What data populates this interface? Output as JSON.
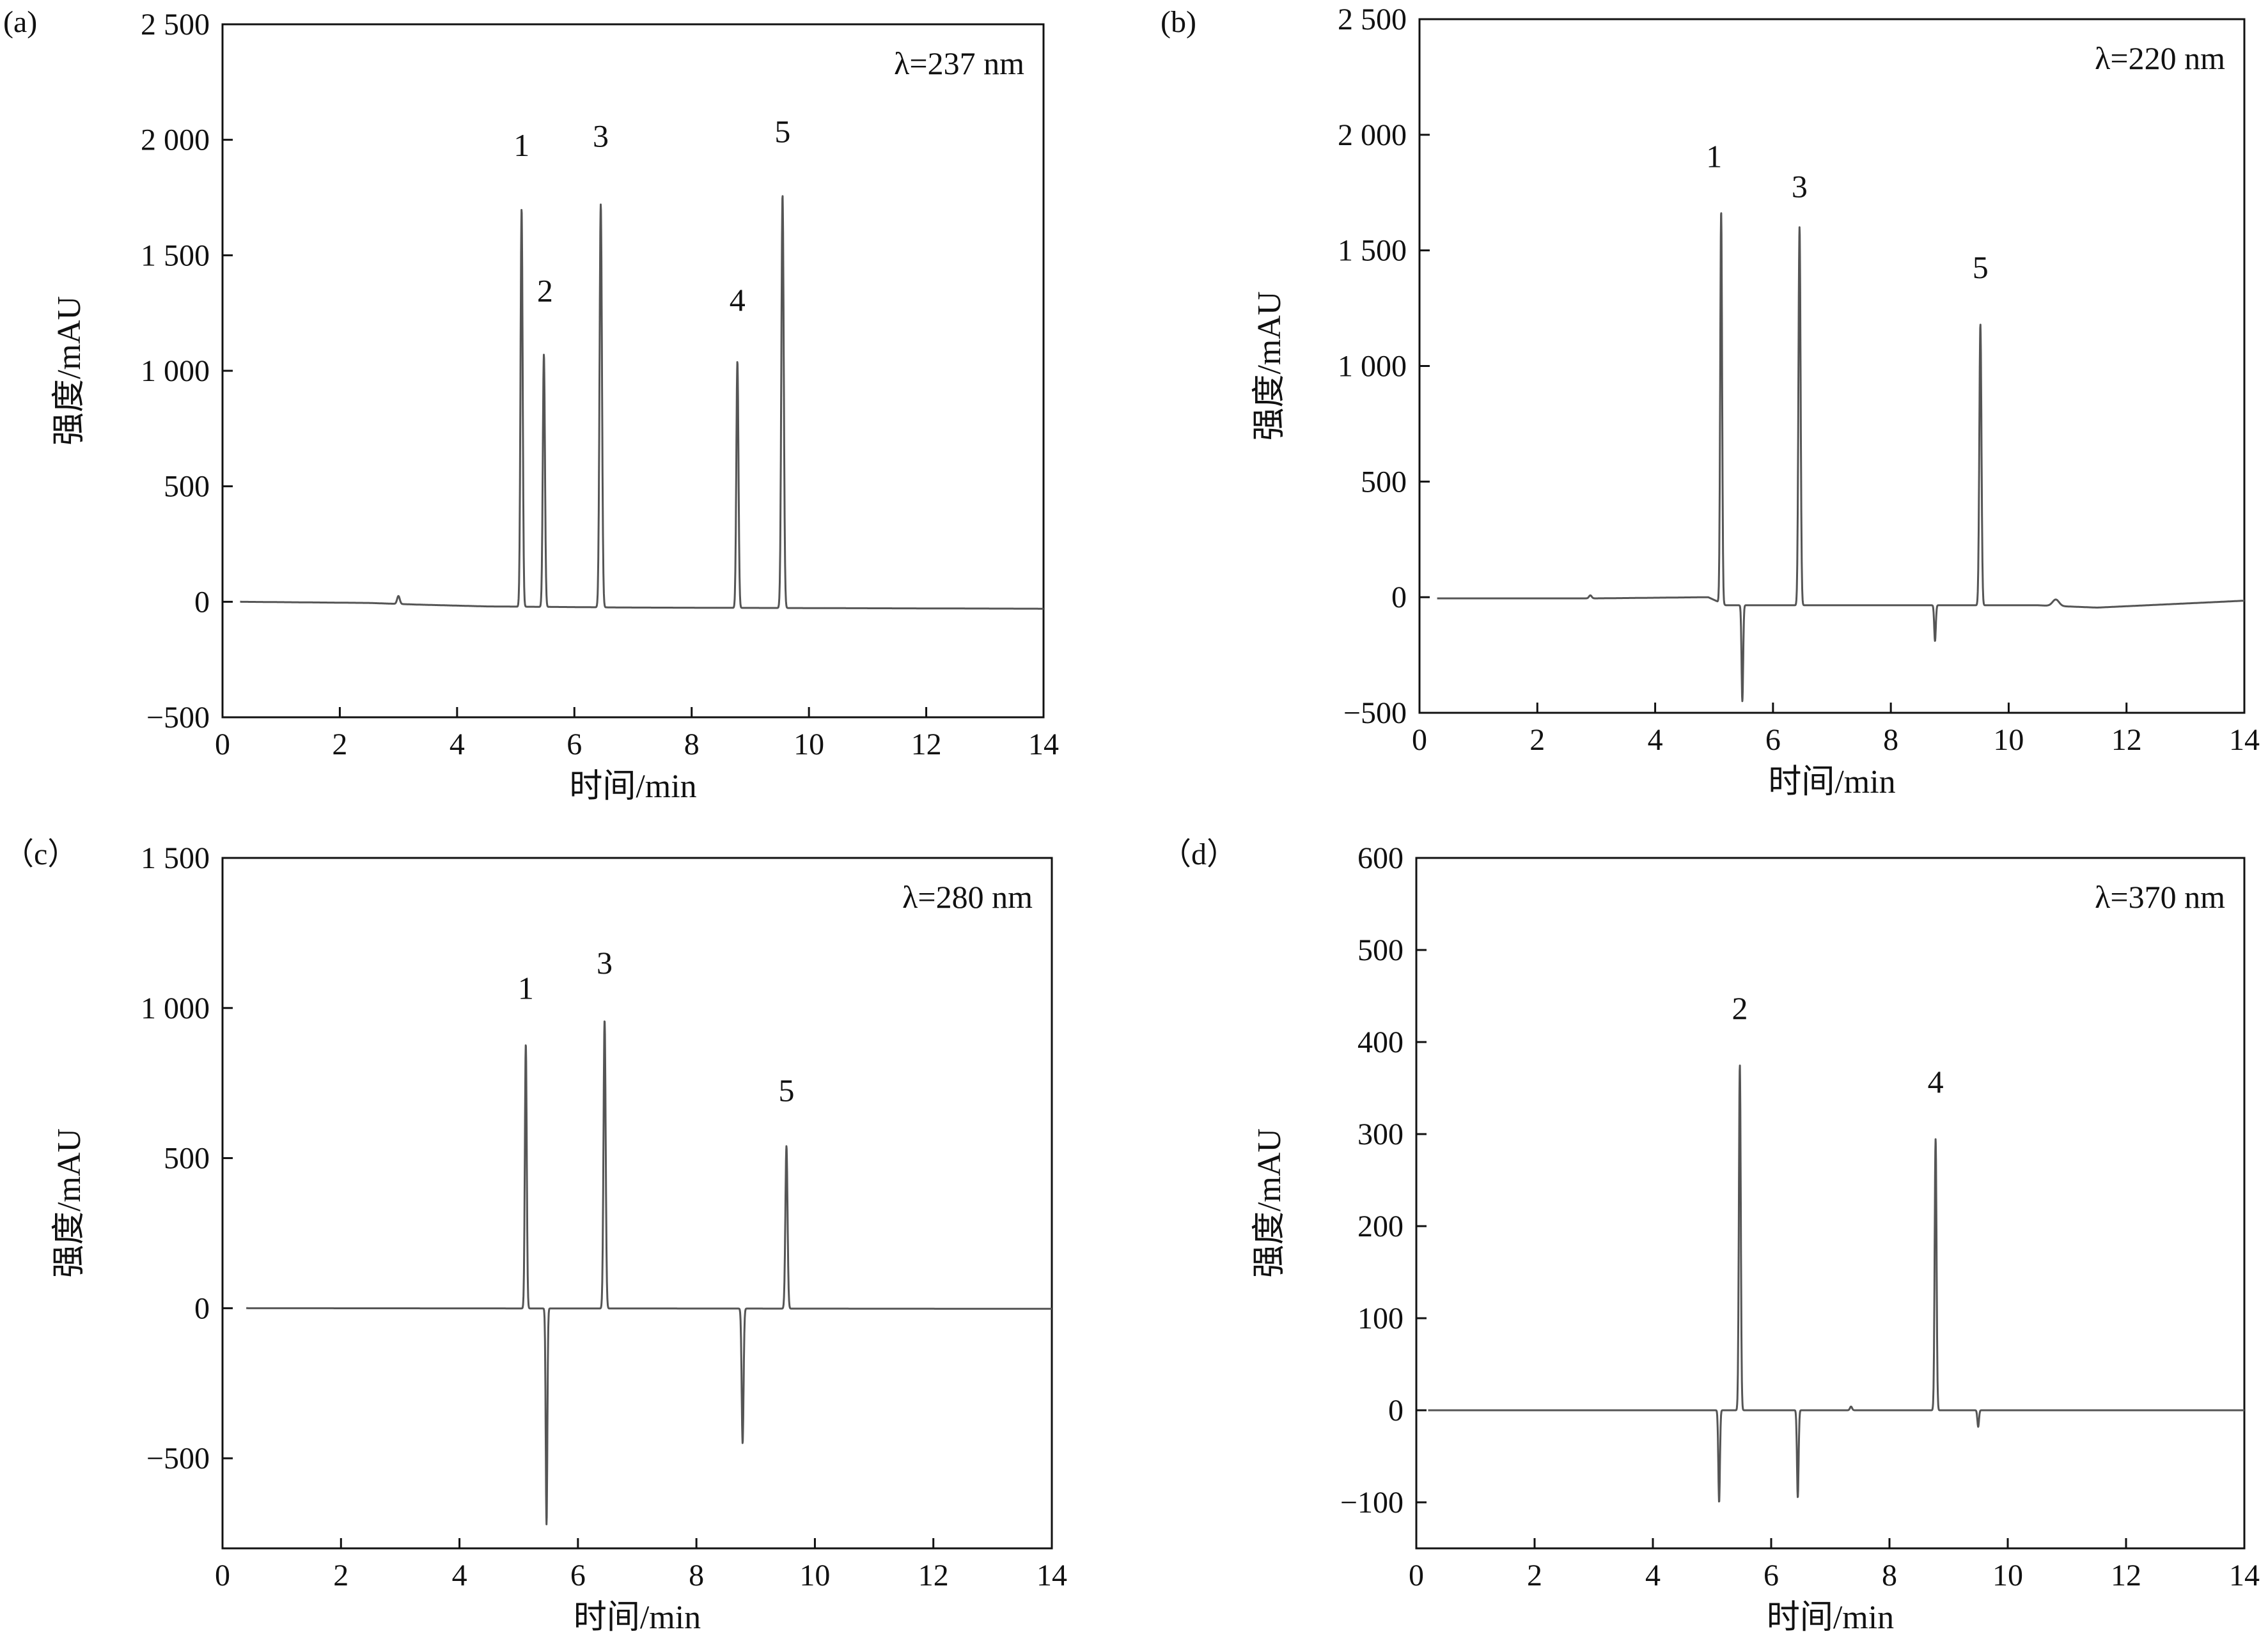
{
  "chart_data": [
    {
      "type": "line",
      "panel": "(a)",
      "annotation": "λ=237 nm",
      "xlabel": "时间/min",
      "ylabel": "强度/mAU",
      "xlim": [
        0,
        14
      ],
      "ylim": [
        -500,
        2500
      ],
      "xticks": [
        0,
        2,
        4,
        6,
        8,
        10,
        12,
        14
      ],
      "xtick_labels": [
        "0",
        "2",
        "4",
        "6",
        "8",
        "10",
        "12",
        "14"
      ],
      "yticks": [
        -500,
        0,
        500,
        1000,
        1500,
        2000,
        2500
      ],
      "ytick_labels": [
        "−500",
        "0",
        "500",
        "1 000",
        "1 500",
        "2 000",
        "2 500"
      ],
      "baseline": [
        [
          0.3,
          0
        ],
        [
          2.5,
          -5
        ],
        [
          3.3,
          -12
        ],
        [
          4.5,
          -20
        ],
        [
          7,
          -25
        ],
        [
          11,
          -28
        ],
        [
          14,
          -30
        ]
      ],
      "peaks": [
        {
          "x": 3.0,
          "y": 25,
          "width": 0.05
        },
        {
          "x": 5.1,
          "y": 1700,
          "width": 0.04
        },
        {
          "x": 5.48,
          "y": 1070,
          "width": 0.04
        },
        {
          "x": 6.45,
          "y": 1720,
          "width": 0.045
        },
        {
          "x": 8.78,
          "y": 1040,
          "width": 0.04
        },
        {
          "x": 9.55,
          "y": 1760,
          "width": 0.045
        }
      ],
      "peak_labels": [
        {
          "text": "1",
          "x": 5.1,
          "y": 1930
        },
        {
          "text": "2",
          "x": 5.5,
          "y": 1300
        },
        {
          "text": "3",
          "x": 6.45,
          "y": 1970
        },
        {
          "text": "4",
          "x": 8.78,
          "y": 1260
        },
        {
          "text": "5",
          "x": 9.55,
          "y": 1990
        }
      ]
    },
    {
      "type": "line",
      "panel": "(b)",
      "annotation": "λ=220 nm",
      "xlabel": "时间/min",
      "ylabel": "强度/mAU",
      "xlim": [
        0,
        14
      ],
      "ylim": [
        -500,
        2500
      ],
      "xticks": [
        0,
        2,
        4,
        6,
        8,
        10,
        12,
        14
      ],
      "xtick_labels": [
        "0",
        "2",
        "4",
        "6",
        "8",
        "10",
        "12",
        "14"
      ],
      "yticks": [
        -500,
        0,
        500,
        1000,
        1500,
        2000,
        2500
      ],
      "ytick_labels": [
        "−500",
        "0",
        "500",
        "1 000",
        "1 500",
        "2 000",
        "2 500"
      ],
      "baseline": [
        [
          0.3,
          -5
        ],
        [
          3.0,
          -5
        ],
        [
          4.9,
          0
        ],
        [
          5.2,
          -35
        ],
        [
          10.5,
          -35
        ],
        [
          11.5,
          -45
        ],
        [
          13.6,
          -20
        ],
        [
          14,
          -15
        ]
      ],
      "peaks": [
        {
          "x": 2.9,
          "y": 8,
          "width": 0.05
        },
        {
          "x": 5.12,
          "y": 1670,
          "width": 0.035
        },
        {
          "x": 5.48,
          "y": -450,
          "width": 0.03
        },
        {
          "x": 6.45,
          "y": 1600,
          "width": 0.04
        },
        {
          "x": 8.75,
          "y": -190,
          "width": 0.03
        },
        {
          "x": 9.52,
          "y": 1180,
          "width": 0.04
        },
        {
          "x": 10.8,
          "y": -10,
          "width": 0.12
        }
      ],
      "peak_labels": [
        {
          "text": "1",
          "x": 5.0,
          "y": 1860
        },
        {
          "text": "3",
          "x": 6.45,
          "y": 1730
        },
        {
          "text": "5",
          "x": 9.52,
          "y": 1380
        }
      ]
    },
    {
      "type": "line",
      "panel": "（c）",
      "annotation": "λ=280 nm",
      "xlabel": "时间/min",
      "ylabel": "强度/mAU",
      "xlim": [
        0,
        14
      ],
      "ylim": [
        -800,
        1500
      ],
      "xticks": [
        0,
        2,
        4,
        6,
        8,
        10,
        12,
        14
      ],
      "xtick_labels": [
        "0",
        "2",
        "4",
        "6",
        "8",
        "10",
        "12",
        "14"
      ],
      "yticks": [
        -500,
        0,
        500,
        1000,
        1500
      ],
      "ytick_labels": [
        "−500",
        "0",
        "500",
        "1 000",
        "1 500"
      ],
      "baseline": [
        [
          0.4,
          0
        ],
        [
          14,
          -2
        ]
      ],
      "peaks": [
        {
          "x": 5.12,
          "y": 880,
          "width": 0.035
        },
        {
          "x": 5.47,
          "y": -720,
          "width": 0.03
        },
        {
          "x": 6.45,
          "y": 960,
          "width": 0.04
        },
        {
          "x": 8.78,
          "y": -450,
          "width": 0.035
        },
        {
          "x": 9.52,
          "y": 540,
          "width": 0.04
        }
      ],
      "peak_labels": [
        {
          "text": "1",
          "x": 5.12,
          "y": 1030
        },
        {
          "text": "3",
          "x": 6.45,
          "y": 1115
        },
        {
          "text": "5",
          "x": 9.52,
          "y": 690
        }
      ]
    },
    {
      "type": "line",
      "panel": "（d）",
      "annotation": "λ=370 nm",
      "xlabel": "时间/min",
      "ylabel": "强度/mAU",
      "xlim": [
        0,
        14
      ],
      "ylim": [
        -150,
        600
      ],
      "xticks": [
        0,
        2,
        4,
        6,
        8,
        10,
        12,
        14
      ],
      "xtick_labels": [
        "0",
        "2",
        "4",
        "6",
        "8",
        "10",
        "12",
        "14"
      ],
      "yticks": [
        -100,
        0,
        100,
        200,
        300,
        400,
        500,
        600
      ],
      "ytick_labels": [
        "−100",
        "0",
        "100",
        "200",
        "300",
        "400",
        "500",
        "600"
      ],
      "baseline": [
        [
          0.2,
          0
        ],
        [
          14,
          0
        ]
      ],
      "peaks": [
        {
          "x": 5.12,
          "y": -100,
          "width": 0.03
        },
        {
          "x": 5.47,
          "y": 375,
          "width": 0.035
        },
        {
          "x": 6.45,
          "y": -95,
          "width": 0.03
        },
        {
          "x": 7.35,
          "y": 4,
          "width": 0.04
        },
        {
          "x": 8.78,
          "y": 295,
          "width": 0.035
        },
        {
          "x": 9.5,
          "y": -18,
          "width": 0.03
        }
      ],
      "peak_labels": [
        {
          "text": "2",
          "x": 5.47,
          "y": 425
        },
        {
          "text": "4",
          "x": 8.78,
          "y": 345
        }
      ]
    }
  ]
}
